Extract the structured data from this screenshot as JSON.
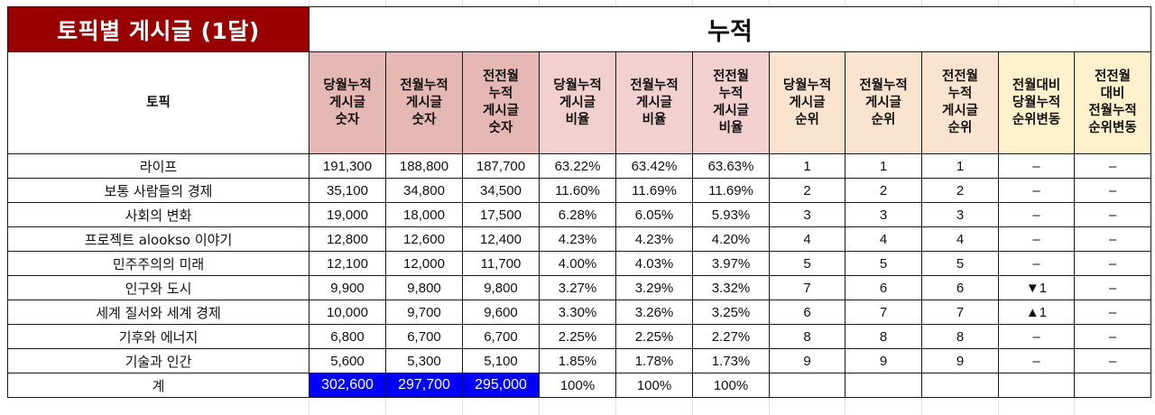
{
  "title": "토픽별 게시글 (1달)",
  "section_header": "누적",
  "columns": {
    "topic": "토픽",
    "cur_count": "당월누적\n게시글\n숫자",
    "prev_count": "전월누적\n게시글\n숫자",
    "prev2_count": "전전월\n누적\n게시글\n숫자",
    "cur_ratio": "당월누적\n게시글\n비율",
    "prev_ratio": "전월누적\n게시글\n비율",
    "prev2_ratio": "전전월\n누적\n게시글\n비율",
    "cur_rank": "당월누적\n게시글\n순위",
    "prev_rank": "전월누적\n게시글\n순위",
    "prev2_rank": "전전월\n누적\n게시글\n순위",
    "chg_cur": "전월대비\n당월누적\n순위변동",
    "chg_prev": "전전월\n대비\n전월누적\n순위변동"
  },
  "rows": [
    {
      "topic": "라이프",
      "cur_count": "191,300",
      "prev_count": "188,800",
      "prev2_count": "187,700",
      "cur_ratio": "63.22%",
      "prev_ratio": "63.42%",
      "prev2_ratio": "63.63%",
      "cur_rank": "1",
      "prev_rank": "1",
      "prev2_rank": "1",
      "chg_cur": "–",
      "chg_prev": "–"
    },
    {
      "topic": "보통 사람들의 경제",
      "cur_count": "35,100",
      "prev_count": "34,800",
      "prev2_count": "34,500",
      "cur_ratio": "11.60%",
      "prev_ratio": "11.69%",
      "prev2_ratio": "11.69%",
      "cur_rank": "2",
      "prev_rank": "2",
      "prev2_rank": "2",
      "chg_cur": "–",
      "chg_prev": "–"
    },
    {
      "topic": "사회의 변화",
      "cur_count": "19,000",
      "prev_count": "18,000",
      "prev2_count": "17,500",
      "cur_ratio": "6.28%",
      "prev_ratio": "6.05%",
      "prev2_ratio": "5.93%",
      "cur_rank": "3",
      "prev_rank": "3",
      "prev2_rank": "3",
      "chg_cur": "–",
      "chg_prev": "–"
    },
    {
      "topic": "프로젝트 alookso 이야기",
      "cur_count": "12,800",
      "prev_count": "12,600",
      "prev2_count": "12,400",
      "cur_ratio": "4.23%",
      "prev_ratio": "4.23%",
      "prev2_ratio": "4.20%",
      "cur_rank": "4",
      "prev_rank": "4",
      "prev2_rank": "4",
      "chg_cur": "–",
      "chg_prev": "–"
    },
    {
      "topic": "민주주의의 미래",
      "cur_count": "12,100",
      "prev_count": "12,000",
      "prev2_count": "11,700",
      "cur_ratio": "4.00%",
      "prev_ratio": "4.03%",
      "prev2_ratio": "3.97%",
      "cur_rank": "5",
      "prev_rank": "5",
      "prev2_rank": "5",
      "chg_cur": "–",
      "chg_prev": "–"
    },
    {
      "topic": "인구와 도시",
      "cur_count": "9,900",
      "prev_count": "9,800",
      "prev2_count": "9,800",
      "cur_ratio": "3.27%",
      "prev_ratio": "3.29%",
      "prev2_ratio": "3.32%",
      "cur_rank": "7",
      "prev_rank": "6",
      "prev2_rank": "6",
      "chg_cur": "▼1",
      "chg_prev": "–"
    },
    {
      "topic": "세계 질서와 세계 경제",
      "cur_count": "10,000",
      "prev_count": "9,700",
      "prev2_count": "9,600",
      "cur_ratio": "3.30%",
      "prev_ratio": "3.26%",
      "prev2_ratio": "3.25%",
      "cur_rank": "6",
      "prev_rank": "7",
      "prev2_rank": "7",
      "chg_cur": "▲1",
      "chg_prev": "–"
    },
    {
      "topic": "기후와 에너지",
      "cur_count": "6,800",
      "prev_count": "6,700",
      "prev2_count": "6,700",
      "cur_ratio": "2.25%",
      "prev_ratio": "2.25%",
      "prev2_ratio": "2.27%",
      "cur_rank": "8",
      "prev_rank": "8",
      "prev2_rank": "8",
      "chg_cur": "–",
      "chg_prev": "–"
    },
    {
      "topic": "기술과 인간",
      "cur_count": "5,600",
      "prev_count": "5,300",
      "prev2_count": "5,100",
      "cur_ratio": "1.85%",
      "prev_ratio": "1.78%",
      "prev2_ratio": "1.73%",
      "cur_rank": "9",
      "prev_rank": "9",
      "prev2_rank": "9",
      "chg_cur": "–",
      "chg_prev": "–"
    }
  ],
  "total": {
    "label": "계",
    "cur_count": "302,600",
    "prev_count": "297,700",
    "prev2_count": "295,000",
    "cur_ratio": "100%",
    "prev_ratio": "100%",
    "prev2_ratio": "100%"
  },
  "colors": {
    "title_bg": "#990000",
    "count_header_bg": "#e6b8b4",
    "ratio_header_bg": "#f2cfd0",
    "rank_header_bg": "#fbe4cf",
    "change_header_bg": "#fff1cc",
    "total_highlight": "#0000ff",
    "rank_down": "#1c1cff",
    "rank_up": "#ff1010"
  }
}
